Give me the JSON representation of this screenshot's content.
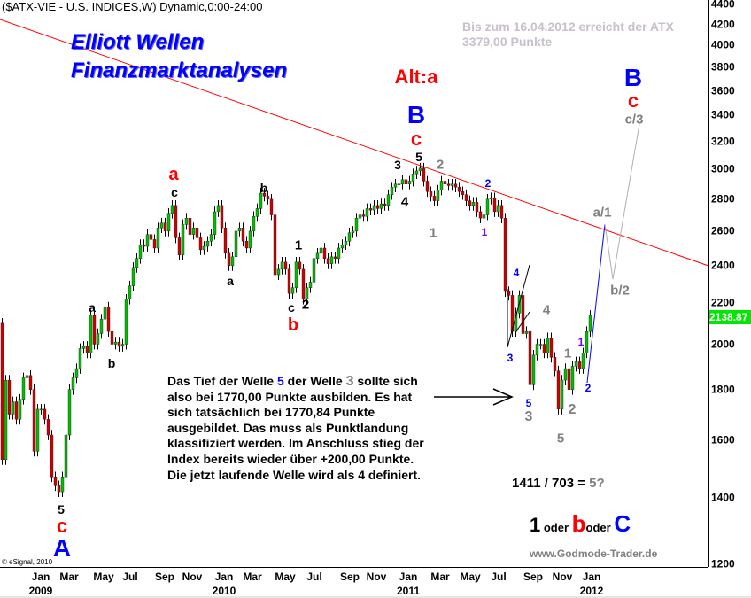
{
  "header": {
    "title": "($ATX-VIE - U.S. INDICES,W) Dynamic,0:00-24:00"
  },
  "branding": {
    "line1": "Elliott Wellen",
    "line2": "Finanzmarktanalysen",
    "source": "© eSignal, 2010",
    "website": "www.Godmode-Trader.de"
  },
  "note": {
    "line1": "Bis zum 16.04.2012 erreicht der ATX",
    "line2": "3379,00 Punkte"
  },
  "textbox": {
    "l1a": "Das Tief der Welle ",
    "l1b": "5",
    "l1c": " der Welle ",
    "l1d": "3",
    "l1e": " sollte sich",
    "l2": "also bei 1770,00 Punkte ausbilden. Es hat",
    "l3": "sich tatsächlich bei 1770,84 Punkte",
    "l4": "ausgebildet. Das muss als Punktlandung",
    "l5": "klassifiziert werden. Im Anschluss stieg der",
    "l6": "Index bereits wieder über +200,00 Punkte.",
    "l7": "Die jetzt laufende Welle wird als 4 definiert."
  },
  "ratio": {
    "expr": "1411 / 703 = ",
    "result": "5?"
  },
  "scenario": {
    "a": "1",
    "sep1": " oder ",
    "b": "b",
    "sep2": "oder ",
    "c": "C"
  },
  "colors": {
    "up_candle": "#00c000",
    "down_candle": "#d00000",
    "trendline": "#ff0000",
    "projection_up": "#0000ff",
    "projection_alt": "#b0b0b0",
    "last_price_bg": "#00e800"
  },
  "chart_data": {
    "type": "candlestick",
    "interval": "weekly",
    "y_scale": "log",
    "ylim": [
      1200,
      4400
    ],
    "y_ticks": [
      1200,
      1400,
      1600,
      1800,
      2000,
      2200,
      2400,
      2600,
      2800,
      3000,
      3200,
      3400,
      3600,
      3800,
      4000,
      4200,
      4400
    ],
    "x_ticks": [
      "Jan",
      "Mar",
      "May",
      "Jul",
      "Sep",
      "Nov",
      "Jan",
      "Mar",
      "May",
      "Jul",
      "Sep",
      "Nov",
      "Jan",
      "Mar",
      "May",
      "Jul",
      "Sep",
      "Nov",
      "Jan"
    ],
    "x_years": [
      "2009",
      "2010",
      "2011",
      "2012"
    ],
    "last_price": "2138.87",
    "first_open": 2100,
    "closes": [
      1530,
      1840,
      1700,
      1750,
      1680,
      1760,
      1850,
      1860,
      1800,
      1560,
      1720,
      1720,
      1680,
      1620,
      1470,
      1440,
      1420,
      1470,
      1620,
      1800,
      1850,
      1890,
      1980,
      1990,
      1960,
      2140,
      2000,
      2050,
      2120,
      2180,
      2060,
      2000,
      2010,
      1990,
      2000,
      2220,
      2290,
      2390,
      2440,
      2520,
      2510,
      2580,
      2550,
      2500,
      2620,
      2650,
      2600,
      2710,
      2760,
      2560,
      2460,
      2640,
      2680,
      2580,
      2620,
      2560,
      2490,
      2510,
      2540,
      2580,
      2720,
      2760,
      2620,
      2470,
      2400,
      2450,
      2600,
      2620,
      2540,
      2500,
      2600,
      2690,
      2740,
      2840,
      2820,
      2800,
      2700,
      2350,
      2380,
      2420,
      2380,
      2250,
      2280,
      2420,
      2380,
      2220,
      2280,
      2310,
      2440,
      2470,
      2500,
      2440,
      2410,
      2450,
      2440,
      2500,
      2520,
      2540,
      2590,
      2600,
      2680,
      2700,
      2690,
      2740,
      2730,
      2760,
      2740,
      2770,
      2760,
      2830,
      2880,
      2900,
      2900,
      2930,
      2900,
      2920,
      2970,
      2990,
      3010,
      2920,
      2850,
      2820,
      2790,
      2860,
      2920,
      2900,
      2890,
      2900,
      2880,
      2850,
      2830,
      2790,
      2760,
      2780,
      2720,
      2680,
      2700,
      2800,
      2810,
      2720,
      2760,
      2680,
      2260,
      2240,
      2060,
      2150,
      2240,
      2050,
      2060,
      1820,
      1950,
      2000,
      2000,
      1960,
      2030,
      1940,
      1880,
      1720,
      1840,
      1890,
      1800,
      1900,
      1920,
      1890,
      1960,
      2060,
      2138.87
    ],
    "annotations": [
      {
        "text": "a",
        "color": "#ff0000"
      },
      {
        "text": "c",
        "color": "#000000"
      },
      {
        "text": "b",
        "color": "#000000"
      },
      {
        "text": "a",
        "color": "#000000"
      },
      {
        "text": "a",
        "color": "#000000"
      },
      {
        "text": "b",
        "color": "#000000"
      },
      {
        "text": "5",
        "color": "#000000"
      },
      {
        "text": "c",
        "color": "#ff0000"
      },
      {
        "text": "A",
        "color": "#0000ff"
      },
      {
        "text": "1",
        "color": "#000000"
      },
      {
        "text": "c",
        "color": "#000000"
      },
      {
        "text": "2",
        "color": "#000000"
      },
      {
        "text": "b",
        "color": "#ff0000"
      },
      {
        "text": "Alt:a",
        "color": "#ff0000"
      },
      {
        "text": "B",
        "color": "#0000ff"
      },
      {
        "text": "c",
        "color": "#ff0000"
      },
      {
        "text": "5",
        "color": "#000000"
      },
      {
        "text": "3",
        "color": "#000000"
      },
      {
        "text": "4",
        "color": "#000000"
      },
      {
        "text": "2",
        "color": "#808080"
      },
      {
        "text": "1",
        "color": "#808080"
      },
      {
        "text": "2",
        "color": "#0000ff"
      },
      {
        "text": "1",
        "color": "#8000ff"
      },
      {
        "text": "4",
        "color": "#0000ff"
      },
      {
        "text": "3",
        "color": "#0000ff"
      },
      {
        "text": "5",
        "color": "#0000ff"
      },
      {
        "text": "3",
        "color": "#808080"
      },
      {
        "text": "4",
        "color": "#808080"
      },
      {
        "text": "1",
        "color": "#808080"
      },
      {
        "text": "2",
        "color": "#808080"
      },
      {
        "text": "5",
        "color": "#808080"
      },
      {
        "text": "1",
        "color": "#8000ff"
      },
      {
        "text": "2",
        "color": "#0000ff"
      },
      {
        "text": "a/1",
        "color": "#808080"
      },
      {
        "text": "b/2",
        "color": "#808080"
      },
      {
        "text": "c/3",
        "color": "#808080"
      },
      {
        "text": "B",
        "color": "#0000ff"
      },
      {
        "text": "c",
        "color": "#ff0000"
      }
    ]
  }
}
